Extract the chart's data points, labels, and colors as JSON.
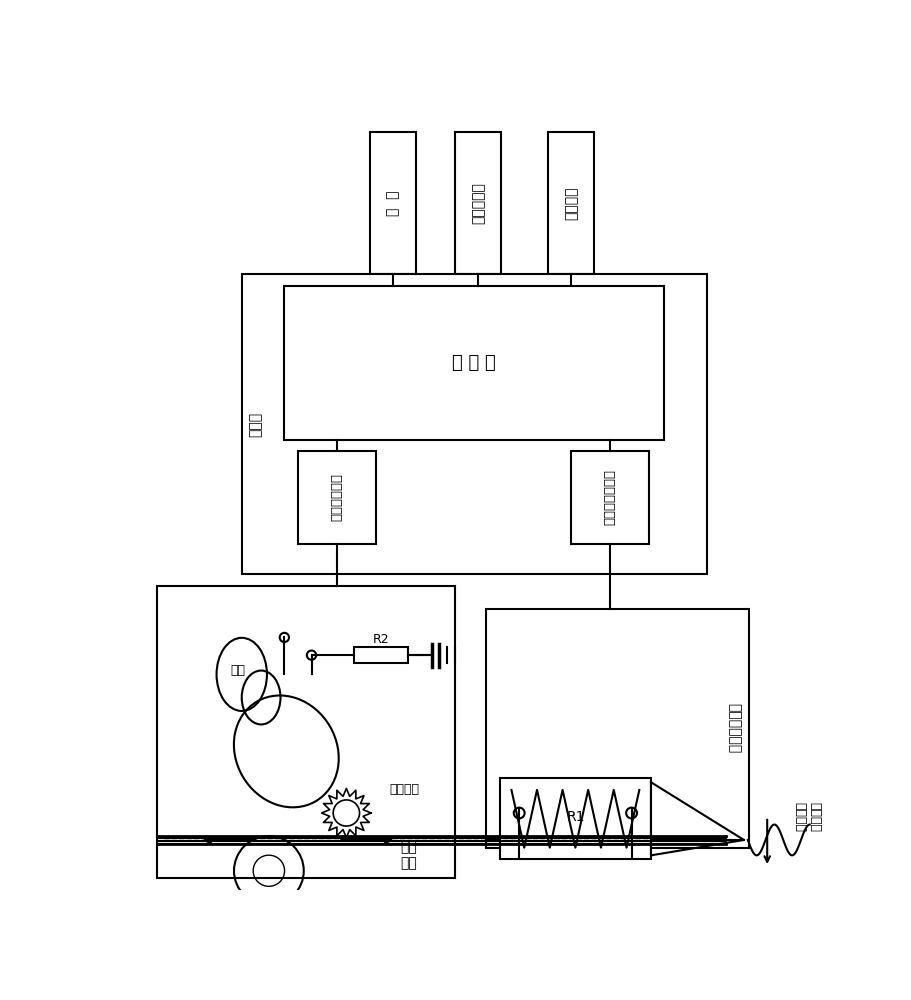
{
  "bg_color": "#ffffff",
  "line_color": "#000000",
  "labels": {
    "power": "电  源",
    "status_led": "状态指示灯",
    "operation_btn": "操作按钒",
    "mcu": "单 片 机",
    "control_panel": "控制板",
    "current_ctrl": "电流控制单元",
    "head_ctrl": "打印头控制单元",
    "feed_mech": "送料\n机构",
    "motor": "电机",
    "feed_gear": "送丝齿轮",
    "R2": "R2",
    "electric_head": "电加热打印头",
    "R1": "R1",
    "melted_material": "融化后的\n打印材料"
  }
}
